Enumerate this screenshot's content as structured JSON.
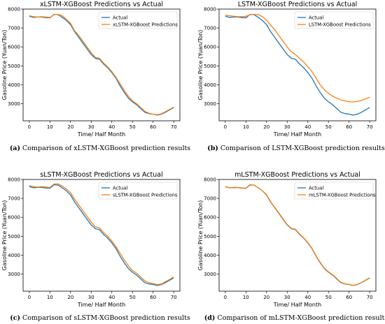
{
  "colors": {
    "actual": "#1f77b4",
    "predicted": "#ff7f0e"
  },
  "chart_data": [
    {
      "type": "line",
      "title": "xLSTM-XGBoost Predictions vs Actual",
      "xlabel": "Time/ Half Month",
      "ylabel": "Gasoline Price (Yuan/Ton)",
      "xlim": [
        -3,
        73
      ],
      "ylim": [
        2100,
        8000
      ],
      "xticks": [
        0,
        10,
        20,
        30,
        40,
        50,
        60,
        70
      ],
      "yticks": [
        3000,
        4000,
        5000,
        6000,
        7000,
        8000
      ],
      "legend": "top-right",
      "grid": false,
      "x": [
        0,
        2,
        4,
        6,
        8,
        10,
        12,
        14,
        16,
        18,
        20,
        22,
        24,
        26,
        28,
        30,
        32,
        34,
        36,
        38,
        40,
        42,
        44,
        46,
        48,
        50,
        52,
        54,
        56,
        58,
        60,
        62,
        64,
        66,
        68,
        70
      ],
      "series": [
        {
          "name": "Actual",
          "values": [
            7620,
            7560,
            7580,
            7580,
            7550,
            7540,
            7720,
            7700,
            7560,
            7400,
            7180,
            6800,
            6500,
            6200,
            5900,
            5600,
            5400,
            5350,
            5100,
            4900,
            4650,
            4350,
            3950,
            3600,
            3300,
            3100,
            2950,
            2750,
            2550,
            2480,
            2450,
            2400,
            2450,
            2550,
            2680,
            2800
          ]
        },
        {
          "name": "xLSTM-XGBoost Predictions",
          "values": [
            7650,
            7600,
            7580,
            7600,
            7580,
            7560,
            7700,
            7720,
            7650,
            7450,
            7250,
            6850,
            6600,
            6300,
            6000,
            5700,
            5450,
            5400,
            5150,
            4950,
            4700,
            4400,
            4050,
            3700,
            3400,
            3150,
            3000,
            2800,
            2600,
            2500,
            2450,
            2420,
            2470,
            2580,
            2700,
            2820
          ]
        }
      ],
      "caption_tag": "(a)",
      "caption": "Comparison of xLSTM-XGBoost prediction results"
    },
    {
      "type": "line",
      "title": "LSTM-XGBoost Predictions vs Actual",
      "xlabel": "Time/ Half Month",
      "ylabel": "Gasoline Price (Yuan/Ton)",
      "xlim": [
        -3,
        73
      ],
      "ylim": [
        2100,
        8000
      ],
      "xticks": [
        0,
        10,
        20,
        30,
        40,
        50,
        60,
        70
      ],
      "yticks": [
        3000,
        4000,
        5000,
        6000,
        7000,
        8000
      ],
      "legend": "top-right",
      "grid": false,
      "x": [
        0,
        2,
        4,
        6,
        8,
        10,
        12,
        14,
        16,
        18,
        20,
        22,
        24,
        26,
        28,
        30,
        32,
        34,
        36,
        38,
        40,
        42,
        44,
        46,
        48,
        50,
        52,
        54,
        56,
        58,
        60,
        62,
        64,
        66,
        68,
        70
      ],
      "series": [
        {
          "name": "Actual",
          "values": [
            7620,
            7560,
            7580,
            7580,
            7550,
            7540,
            7720,
            7700,
            7560,
            7400,
            7180,
            6800,
            6500,
            6200,
            5900,
            5600,
            5400,
            5350,
            5100,
            4900,
            4650,
            4350,
            3950,
            3600,
            3300,
            3100,
            2950,
            2750,
            2550,
            2480,
            2450,
            2400,
            2450,
            2550,
            2680,
            2800
          ]
        },
        {
          "name": "LSTM-XGBoost Predictions",
          "values": [
            7680,
            7650,
            7620,
            7600,
            7600,
            7620,
            7700,
            7720,
            7700,
            7600,
            7420,
            7150,
            6900,
            6600,
            6300,
            6000,
            5750,
            5600,
            5400,
            5200,
            4950,
            4700,
            4350,
            4000,
            3750,
            3550,
            3400,
            3300,
            3200,
            3150,
            3100,
            3100,
            3120,
            3180,
            3260,
            3350
          ]
        }
      ],
      "caption_tag": "(b)",
      "caption": "Comparison of LSTM-XGBoost prediction results"
    },
    {
      "type": "line",
      "title": "sLSTM-XGBoost Predictions vs Actual",
      "xlabel": "Time/ Half Month",
      "ylabel": "Gasoline Price (Yuan/Ton)",
      "xlim": [
        -3,
        73
      ],
      "ylim": [
        2100,
        8000
      ],
      "xticks": [
        0,
        10,
        20,
        30,
        40,
        50,
        60,
        70
      ],
      "yticks": [
        3000,
        4000,
        5000,
        6000,
        7000,
        8000
      ],
      "legend": "top-right",
      "grid": false,
      "x": [
        0,
        2,
        4,
        6,
        8,
        10,
        12,
        14,
        16,
        18,
        20,
        22,
        24,
        26,
        28,
        30,
        32,
        34,
        36,
        38,
        40,
        42,
        44,
        46,
        48,
        50,
        52,
        54,
        56,
        58,
        60,
        62,
        64,
        66,
        68,
        70
      ],
      "series": [
        {
          "name": "Actual",
          "values": [
            7620,
            7560,
            7580,
            7580,
            7550,
            7540,
            7720,
            7700,
            7560,
            7400,
            7180,
            6800,
            6500,
            6200,
            5900,
            5600,
            5400,
            5350,
            5100,
            4900,
            4650,
            4350,
            3950,
            3600,
            3300,
            3100,
            2950,
            2750,
            2550,
            2480,
            2450,
            2400,
            2450,
            2550,
            2680,
            2800
          ]
        },
        {
          "name": "sLSTM-XGBoost Predictions",
          "values": [
            7680,
            7620,
            7600,
            7620,
            7600,
            7580,
            7760,
            7760,
            7650,
            7500,
            7300,
            6950,
            6650,
            6350,
            6050,
            5750,
            5500,
            5450,
            5200,
            5000,
            4750,
            4450,
            4100,
            3750,
            3450,
            3200,
            3050,
            2850,
            2650,
            2550,
            2500,
            2450,
            2480,
            2600,
            2720,
            2850
          ]
        }
      ],
      "caption_tag": "(c)",
      "caption": "Comparison of sLSTM-XGBoost prediction results"
    },
    {
      "type": "line",
      "title": "mLSTM-XGBoost Predictions vs Actual",
      "xlabel": "Time/ Half Month",
      "ylabel": "Gasoline Price (Yuan/Ton)",
      "xlim": [
        -3,
        73
      ],
      "ylim": [
        2100,
        8000
      ],
      "xticks": [
        0,
        10,
        20,
        30,
        40,
        50,
        60,
        70
      ],
      "yticks": [
        3000,
        4000,
        5000,
        6000,
        7000,
        8000
      ],
      "legend": "top-right",
      "grid": false,
      "x": [
        0,
        2,
        4,
        6,
        8,
        10,
        12,
        14,
        16,
        18,
        20,
        22,
        24,
        26,
        28,
        30,
        32,
        34,
        36,
        38,
        40,
        42,
        44,
        46,
        48,
        50,
        52,
        54,
        56,
        58,
        60,
        62,
        64,
        66,
        68,
        70
      ],
      "series": [
        {
          "name": "Actual",
          "values": [
            7620,
            7560,
            7580,
            7580,
            7550,
            7540,
            7720,
            7700,
            7560,
            7400,
            7180,
            6800,
            6500,
            6200,
            5900,
            5600,
            5400,
            5350,
            5100,
            4900,
            4650,
            4350,
            3950,
            3600,
            3300,
            3100,
            2950,
            2750,
            2550,
            2480,
            2450,
            2400,
            2450,
            2550,
            2680,
            2800
          ]
        },
        {
          "name": "mLSTM-XGBoost Predictions",
          "values": [
            7610,
            7570,
            7560,
            7570,
            7540,
            7530,
            7700,
            7700,
            7560,
            7400,
            7200,
            6820,
            6520,
            6220,
            5920,
            5620,
            5420,
            5370,
            5120,
            4920,
            4670,
            4370,
            3970,
            3620,
            3320,
            3120,
            2970,
            2770,
            2570,
            2490,
            2460,
            2410,
            2460,
            2560,
            2690,
            2810
          ]
        }
      ],
      "caption_tag": "(d)",
      "caption": "Comparison of mLSTM-XGBoost prediction results"
    }
  ]
}
